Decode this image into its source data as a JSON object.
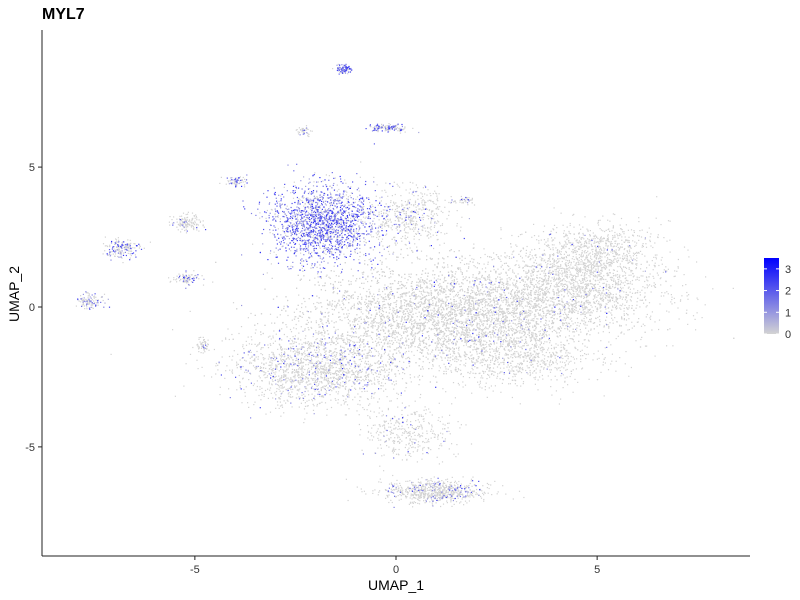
{
  "chart_data": {
    "type": "scatter",
    "title": "MYL7",
    "xlabel": "UMAP_1",
    "ylabel": "UMAP_2",
    "xlim": [
      -8.8,
      8.8
    ],
    "ylim": [
      -8.9,
      9.9
    ],
    "xticks": [
      -5,
      0,
      5
    ],
    "yticks": [
      -5,
      0,
      5
    ],
    "grid": false,
    "color_scale": {
      "low_color": "#d3d3d3",
      "high_color": "#0000ff",
      "range": [
        0,
        3.5
      ],
      "ticks": [
        0,
        1,
        2,
        3
      ],
      "legend_position": "right"
    },
    "clusters": [
      {
        "cx": 1.2,
        "cy": -0.3,
        "sx": 2.8,
        "sy": 1.5,
        "n": 5200,
        "expr": 0.05
      },
      {
        "cx": 4.3,
        "cy": 0.6,
        "sx": 1.9,
        "sy": 1.3,
        "n": 1800,
        "expr": 0.03
      },
      {
        "cx": -1.9,
        "cy": -2.2,
        "sx": 1.8,
        "sy": 1.1,
        "n": 1700,
        "expr": 0.15
      },
      {
        "cx": -1.8,
        "cy": 3.0,
        "sx": 1.1,
        "sy": 1.1,
        "n": 1700,
        "expr": 1.3
      },
      {
        "cx": 0.3,
        "cy": 3.2,
        "sx": 0.9,
        "sy": 0.8,
        "n": 500,
        "expr": 0.15
      },
      {
        "cx": 0.3,
        "cy": -4.5,
        "sx": 0.9,
        "sy": 0.8,
        "n": 350,
        "expr": 0.1
      },
      {
        "cx": 1.0,
        "cy": -6.6,
        "sx": 1.1,
        "sy": 0.35,
        "n": 700,
        "expr": 0.15
      },
      {
        "cx": -1.3,
        "cy": 8.5,
        "sx": 0.15,
        "sy": 0.12,
        "n": 90,
        "expr": 1.2
      },
      {
        "cx": -0.2,
        "cy": 6.4,
        "sx": 0.4,
        "sy": 0.12,
        "n": 140,
        "expr": 0.8
      },
      {
        "cx": -2.3,
        "cy": 6.3,
        "sx": 0.15,
        "sy": 0.15,
        "n": 40,
        "expr": 0.3
      },
      {
        "cx": -6.8,
        "cy": 2.1,
        "sx": 0.35,
        "sy": 0.3,
        "n": 170,
        "expr": 0.5
      },
      {
        "cx": -7.6,
        "cy": 0.2,
        "sx": 0.25,
        "sy": 0.2,
        "n": 110,
        "expr": 0.5
      },
      {
        "cx": -5.2,
        "cy": 3.0,
        "sx": 0.3,
        "sy": 0.25,
        "n": 130,
        "expr": 0.2
      },
      {
        "cx": -5.2,
        "cy": 1.0,
        "sx": 0.25,
        "sy": 0.2,
        "n": 90,
        "expr": 0.4
      },
      {
        "cx": -4.8,
        "cy": -1.4,
        "sx": 0.15,
        "sy": 0.2,
        "n": 60,
        "expr": 0.2
      },
      {
        "cx": -4.0,
        "cy": 4.5,
        "sx": 0.25,
        "sy": 0.15,
        "n": 70,
        "expr": 0.6
      },
      {
        "cx": 1.7,
        "cy": 3.8,
        "sx": 0.25,
        "sy": 0.1,
        "n": 40,
        "expr": 0.3
      },
      {
        "cx": 5.0,
        "cy": 2.0,
        "sx": 1.2,
        "sy": 0.9,
        "n": 700,
        "expr": 0.03
      },
      {
        "cx": 3.0,
        "cy": -1.8,
        "sx": 1.6,
        "sy": 0.9,
        "n": 700,
        "expr": 0.03
      }
    ]
  }
}
